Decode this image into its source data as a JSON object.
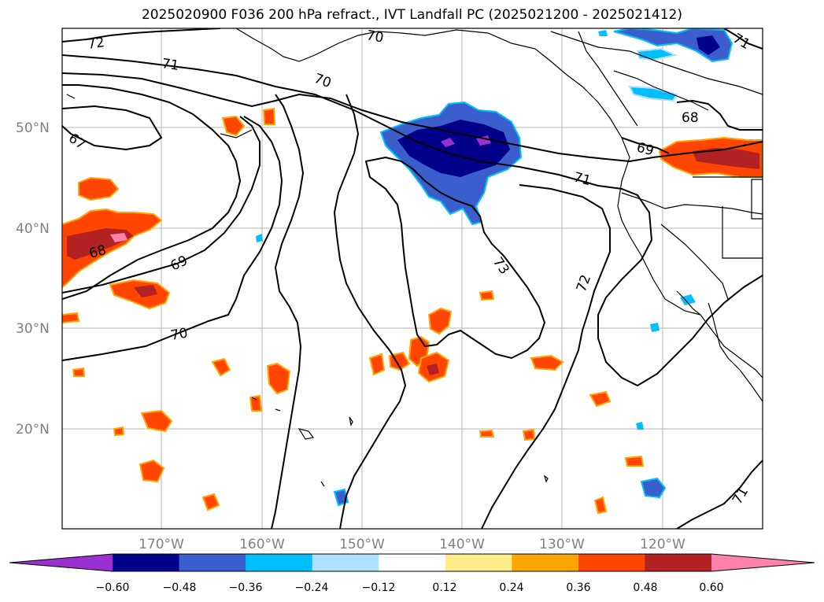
{
  "title": "2025020900 F036 200 hPa refract., IVT Landfall PC (2025021200 - 2025021412)",
  "lat_labels": [
    "50°N",
    "40°N",
    "30°N",
    "20°N"
  ],
  "lon_labels": [
    "170°W",
    "160°W",
    "150°W",
    "140°W",
    "130°W",
    "120°W"
  ],
  "contour_labels": [
    "72",
    "71",
    "70",
    "67",
    "68",
    "69",
    "70",
    "70",
    "71",
    "73",
    "72",
    "71",
    "68",
    "69",
    "71"
  ],
  "colorbar": {
    "ticks": [
      "−0.60",
      "−0.48",
      "−0.36",
      "−0.24",
      "−0.12",
      "0.12",
      "0.24",
      "0.36",
      "0.48",
      "0.60"
    ],
    "colors": [
      "#9b30d0",
      "#00008b",
      "#3a5fcd",
      "#00bfff",
      "#b0e2ff",
      "#ffffff",
      "#ffec8b",
      "#ffa500",
      "#ff4500",
      "#b22222",
      "#ff82ab"
    ]
  }
}
